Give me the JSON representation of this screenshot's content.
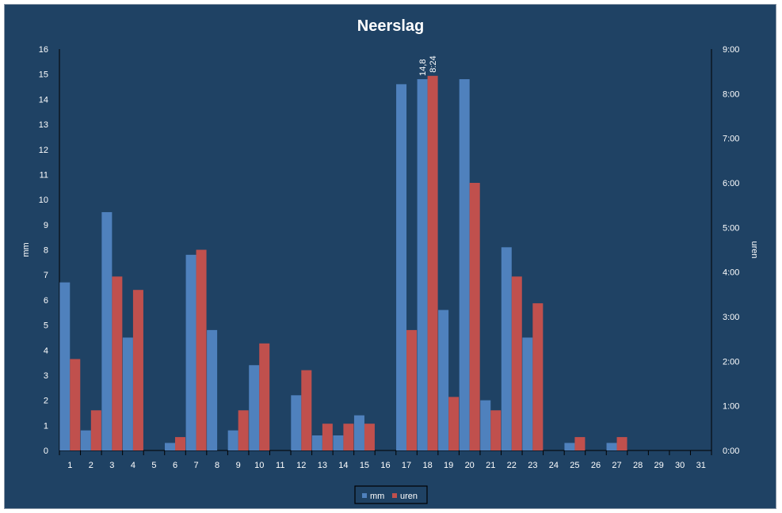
{
  "chart_data": {
    "type": "bar",
    "title": "Neerslag",
    "ylabel": "mm",
    "y2label": "uren",
    "categories": [
      "1",
      "2",
      "3",
      "4",
      "5",
      "6",
      "7",
      "8",
      "9",
      "10",
      "11",
      "12",
      "13",
      "14",
      "15",
      "16",
      "17",
      "18",
      "19",
      "20",
      "21",
      "22",
      "23",
      "24",
      "25",
      "26",
      "27",
      "28",
      "29",
      "30",
      "31"
    ],
    "ylim": [
      0,
      16
    ],
    "y_ticks": [
      "0",
      "1",
      "2",
      "3",
      "4",
      "5",
      "6",
      "7",
      "8",
      "9",
      "10",
      "11",
      "12",
      "13",
      "14",
      "15",
      "16"
    ],
    "y2lim_minutes": [
      0,
      540
    ],
    "y2_ticks": [
      "0:00",
      "1:00",
      "2:00",
      "3:00",
      "4:00",
      "5:00",
      "6:00",
      "7:00",
      "8:00",
      "9:00"
    ],
    "series": [
      {
        "name": "mm",
        "axis": "left",
        "color": "#4f81bd",
        "values": [
          6.7,
          0.8,
          9.5,
          4.5,
          0,
          0.3,
          7.8,
          4.8,
          0.8,
          3.4,
          0,
          2.2,
          0.6,
          0.6,
          1.4,
          0,
          14.6,
          14.8,
          5.6,
          14.8,
          2.0,
          8.1,
          4.5,
          0,
          0.3,
          0,
          0.3,
          0,
          0,
          0,
          0
        ]
      },
      {
        "name": "uren",
        "axis": "right",
        "color": "#c0504d",
        "values_minutes": [
          123,
          54,
          234,
          216,
          0,
          18,
          270,
          0,
          54,
          144,
          0,
          108,
          36,
          36,
          36,
          0,
          162,
          504,
          72,
          360,
          54,
          234,
          198,
          0,
          18,
          0,
          18,
          0,
          0,
          0,
          0
        ]
      }
    ],
    "data_labels": [
      {
        "series": "mm",
        "category": "18",
        "text": "14,8"
      },
      {
        "series": "uren",
        "category": "18",
        "text": "8:24"
      }
    ],
    "legend": {
      "position": "bottom",
      "entries": [
        "mm",
        "uren"
      ]
    },
    "grid": false
  }
}
